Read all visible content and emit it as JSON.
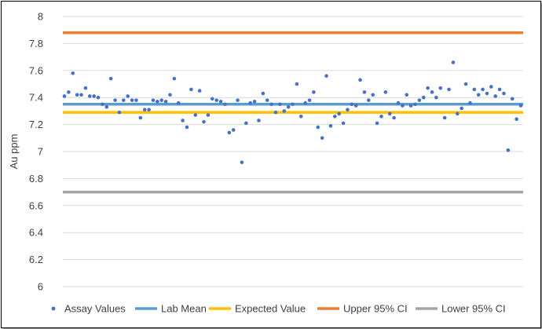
{
  "chart_data": {
    "type": "scatter",
    "title": "",
    "xlabel": "",
    "ylabel": "Au ppm",
    "ylim": [
      6,
      8
    ],
    "yticks": [
      "6",
      "6.2",
      "6.4",
      "6.6",
      "6.8",
      "7",
      "7.2",
      "7.4",
      "7.6",
      "7.8",
      "8"
    ],
    "grid": "horizontal",
    "legend_position": "bottom",
    "colors": {
      "assay": "#4472C4",
      "lab_mean": "#5B9BD5",
      "expected": "#FFC000",
      "upper": "#ED7D31",
      "lower": "#A5A5A5"
    },
    "series": [
      {
        "name": "Assay Values",
        "kind": "points",
        "values": [
          7.41,
          7.44,
          7.58,
          7.42,
          7.42,
          7.47,
          7.41,
          7.41,
          7.4,
          7.35,
          7.33,
          7.54,
          7.38,
          7.29,
          7.38,
          7.41,
          7.38,
          7.38,
          7.25,
          7.31,
          7.31,
          7.38,
          7.37,
          7.38,
          7.37,
          7.42,
          7.54,
          7.36,
          7.23,
          7.18,
          7.46,
          7.27,
          7.45,
          7.22,
          7.27,
          7.39,
          7.38,
          7.37,
          7.35,
          7.14,
          7.16,
          7.38,
          6.92,
          7.21,
          7.36,
          7.37,
          7.23,
          7.43,
          7.38,
          7.35,
          7.29,
          7.35,
          7.3,
          7.33,
          7.35,
          7.5,
          7.26,
          7.36,
          7.38,
          7.44,
          7.18,
          7.1,
          7.56,
          7.19,
          7.26,
          7.28,
          7.21,
          7.31,
          7.35,
          7.34,
          7.53,
          7.44,
          7.38,
          7.42,
          7.21,
          7.26,
          7.44,
          7.28,
          7.25,
          7.36,
          7.34,
          7.42,
          7.34,
          7.35,
          7.38,
          7.4,
          7.47,
          7.44,
          7.4,
          7.47,
          7.25,
          7.46,
          7.66,
          7.28,
          7.32,
          7.5,
          7.36,
          7.46,
          7.42,
          7.46,
          7.43,
          7.48,
          7.41,
          7.46,
          7.43,
          7.01,
          7.39,
          7.24,
          7.34
        ]
      },
      {
        "name": "Lab Mean",
        "kind": "line",
        "value": 7.35
      },
      {
        "name": "Expected Value",
        "kind": "line",
        "value": 7.29
      },
      {
        "name": "Upper 95% CI",
        "kind": "line",
        "value": 7.88
      },
      {
        "name": "Lower 95% CI",
        "kind": "line",
        "value": 6.7
      }
    ]
  }
}
